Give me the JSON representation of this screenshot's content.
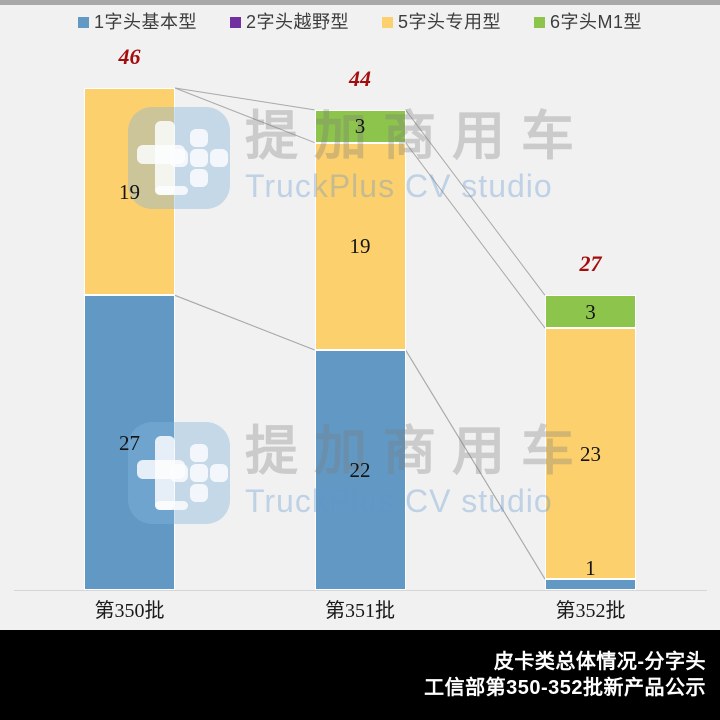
{
  "page": {
    "background": "#f1f1f1",
    "top_strip_color": "#a8a8a8"
  },
  "chart_data": {
    "type": "bar",
    "stacked": true,
    "categories": [
      "第350批",
      "第351批",
      "第352批"
    ],
    "series": [
      {
        "name": "1字头基本型",
        "color": "#6199C4",
        "values": [
          27,
          22,
          1
        ]
      },
      {
        "name": "2字头越野型",
        "color": "#7030A0",
        "values": [
          0,
          0,
          0
        ]
      },
      {
        "name": "5字头专用型",
        "color": "#FDD06E",
        "values": [
          19,
          19,
          23
        ]
      },
      {
        "name": "6字头M1型",
        "color": "#8CC44C",
        "values": [
          0,
          3,
          3
        ]
      }
    ],
    "totals": [
      46,
      44,
      27
    ],
    "ylim": [
      0,
      46
    ],
    "gridlines": false,
    "legend_position": "top",
    "total_label_color": "#A40D0D",
    "series_line_color": "#A9A9A9",
    "axis_line_color": "#D6D6D6",
    "bar_separator_color": "#FFFFFF"
  },
  "watermark": {
    "brand_cn": "提加商用车",
    "brand_en": "TruckPlus CV studio",
    "logo": "truckplus-logo"
  },
  "footer": {
    "line1": "皮卡类总体情况-分字头",
    "line2": "工信部第350-352批新产品公示",
    "background": "#000000",
    "text_color": "#FFFFFF"
  }
}
